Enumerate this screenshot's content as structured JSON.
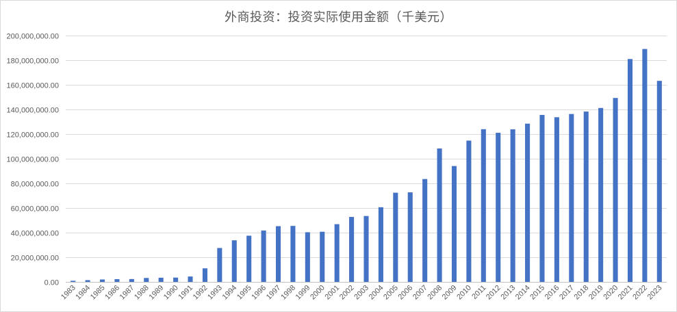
{
  "chart_data": {
    "type": "bar",
    "title": "外商投资：投资实际使用金额（千美元）",
    "xlabel": "",
    "ylabel": "",
    "ylim": [
      0,
      200000000
    ],
    "y_ticks": [
      "0.00",
      "20,000,000.00",
      "40,000,000.00",
      "60,000,000.00",
      "80,000,000.00",
      "100,000,000.00",
      "120,000,000.00",
      "140,000,000.00",
      "160,000,000.00",
      "180,000,000.00",
      "200,000,000.00"
    ],
    "y_tick_values": [
      0,
      20000000,
      40000000,
      60000000,
      80000000,
      100000000,
      120000000,
      140000000,
      160000000,
      180000000,
      200000000
    ],
    "grid": true,
    "legend": "none",
    "bar_color": "#4472C4",
    "categories": [
      "1983",
      "1984",
      "1985",
      "1986",
      "1987",
      "1988",
      "1989",
      "1990",
      "1991",
      "1992",
      "1993",
      "1994",
      "1995",
      "1996",
      "1997",
      "1998",
      "1999",
      "2000",
      "2001",
      "2002",
      "2003",
      "2004",
      "2005",
      "2006",
      "2007",
      "2008",
      "2009",
      "2010",
      "2011",
      "2012",
      "2013",
      "2014",
      "2015",
      "2016",
      "2017",
      "2018",
      "2019",
      "2020",
      "2021",
      "2022",
      "2023"
    ],
    "values": [
      920000,
      1420000,
      1960000,
      2240000,
      2310000,
      3190000,
      3390000,
      3490000,
      4370000,
      11010000,
      27520000,
      33770000,
      37520000,
      41730000,
      45260000,
      45460000,
      40320000,
      40720000,
      46880000,
      52740000,
      53510000,
      60630000,
      72410000,
      72720000,
      83520000,
      108310000,
      94070000,
      114730000,
      123990000,
      121080000,
      123910000,
      128500000,
      135580000,
      133710000,
      136320000,
      138310000,
      141230000,
      149340000,
      180960000,
      189130000,
      163250000
    ]
  }
}
